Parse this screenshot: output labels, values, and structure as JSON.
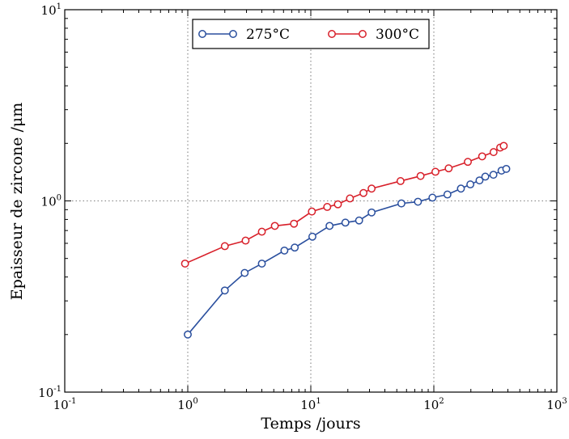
{
  "chart_data": {
    "type": "line",
    "xlabel": "Temps /jours",
    "ylabel": "Epaisseur de zircone /μm",
    "xscale": "log",
    "yscale": "log",
    "xlim": [
      0.1,
      1000
    ],
    "ylim": [
      0.1,
      10
    ],
    "grid": "dotted lines at major decades (x = 1, 10, 100; y = 1)",
    "legend_position": "top-center",
    "x_ticks": [
      {
        "base": "10",
        "exp": "-1"
      },
      {
        "base": "10",
        "exp": "0"
      },
      {
        "base": "10",
        "exp": "1"
      },
      {
        "base": "10",
        "exp": "2"
      },
      {
        "base": "10",
        "exp": "3"
      }
    ],
    "y_ticks": [
      {
        "base": "10",
        "exp": "-1"
      },
      {
        "base": "10",
        "exp": "0"
      },
      {
        "base": "10",
        "exp": "1"
      }
    ],
    "series": [
      {
        "name": "275°C",
        "color": "#2a4f9e",
        "marker": "open-circle",
        "x": [
          1,
          2,
          2.9,
          4,
          6.1,
          7.4,
          10.3,
          14.2,
          19.1,
          24.7,
          31.2,
          54.5,
          74.3,
          97.4,
          129,
          166,
          198,
          235,
          262,
          305,
          355,
          388
        ],
        "y": [
          0.2,
          0.34,
          0.42,
          0.47,
          0.55,
          0.57,
          0.65,
          0.74,
          0.77,
          0.79,
          0.87,
          0.97,
          0.99,
          1.04,
          1.08,
          1.16,
          1.22,
          1.28,
          1.34,
          1.37,
          1.44,
          1.47
        ]
      },
      {
        "name": "300°C",
        "color": "#d8202a",
        "marker": "open-circle",
        "x": [
          0.95,
          2,
          2.95,
          4,
          5.1,
          7.3,
          10.2,
          13.6,
          16.6,
          20.8,
          26.8,
          31.2,
          53.6,
          78,
          103,
          132,
          189,
          247,
          306,
          346,
          370
        ],
        "y": [
          0.47,
          0.58,
          0.62,
          0.69,
          0.74,
          0.76,
          0.88,
          0.93,
          0.96,
          1.03,
          1.1,
          1.16,
          1.27,
          1.35,
          1.42,
          1.48,
          1.6,
          1.71,
          1.8,
          1.9,
          1.94
        ]
      }
    ]
  }
}
